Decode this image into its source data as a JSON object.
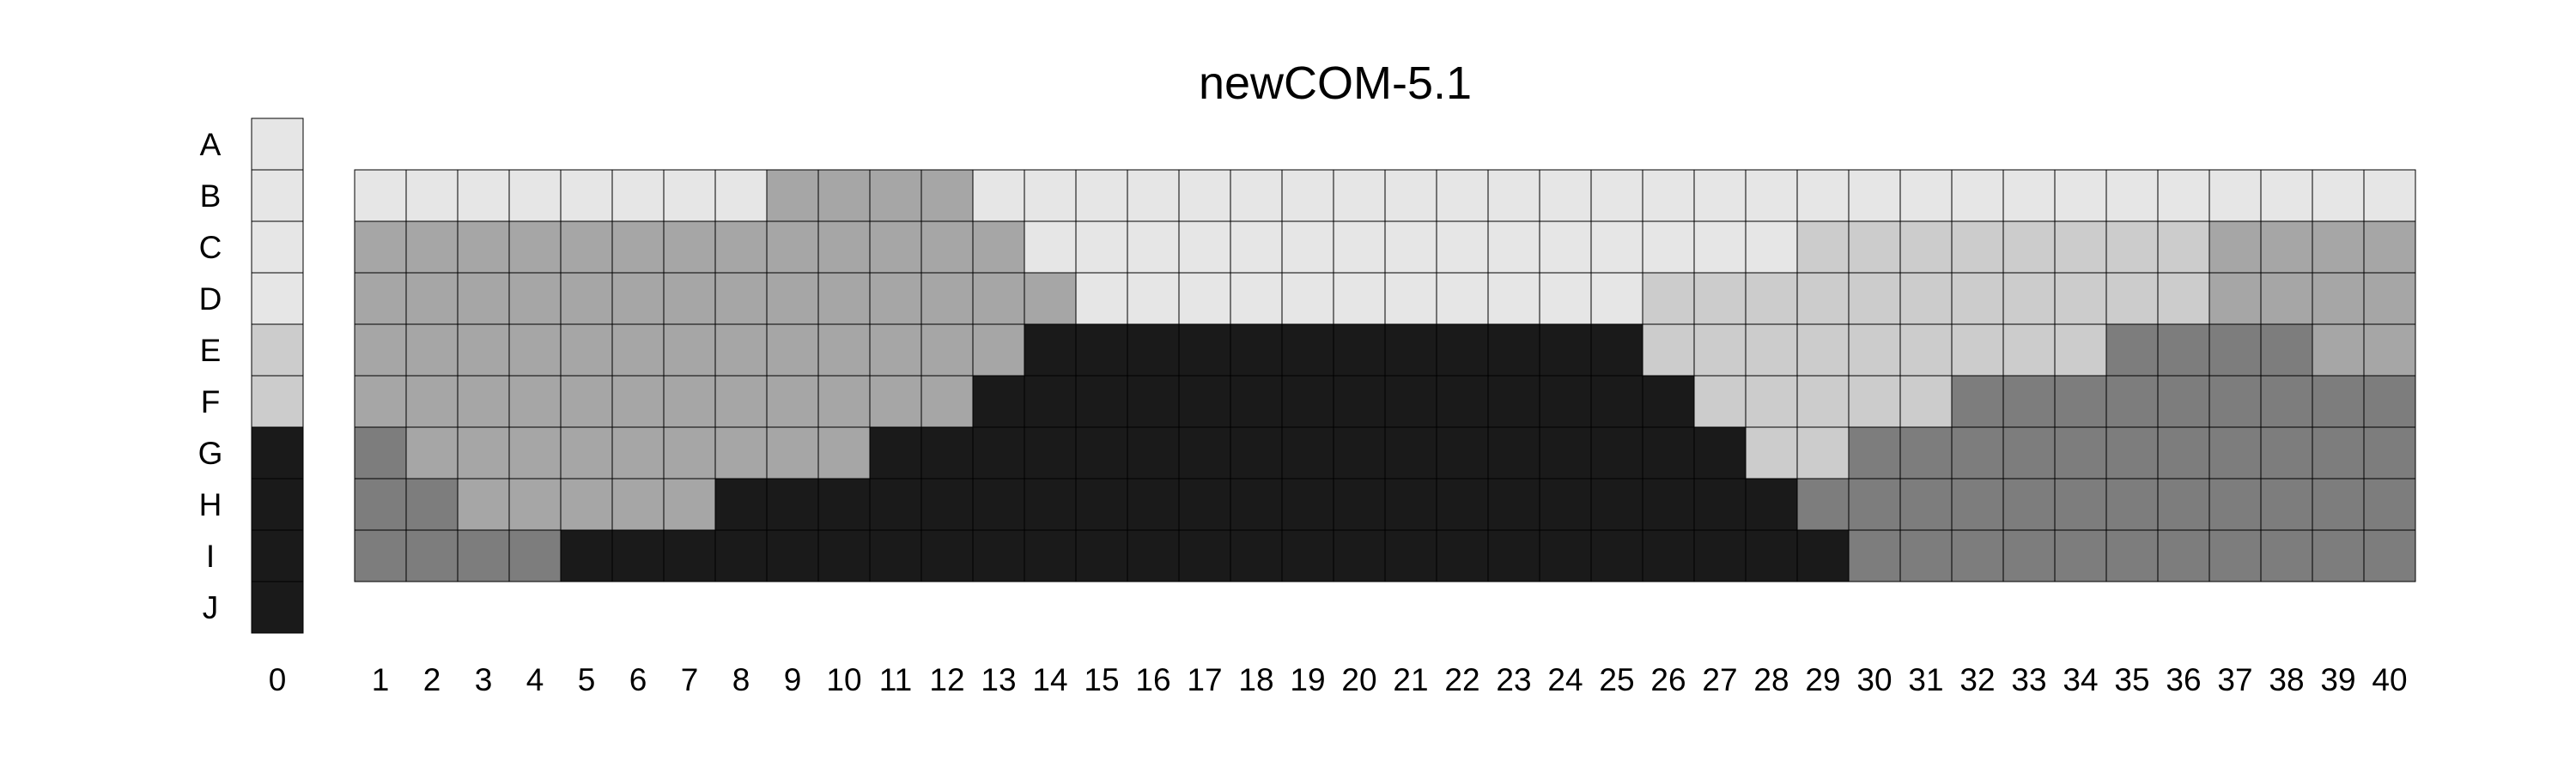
{
  "chart_data": {
    "type": "heatmap",
    "title": "newCOM-5.1",
    "colors": {
      "0": "#e6e6e6",
      "1": "#cccccc",
      "2": "#a6a6a6",
      "3": "#7d7d7d",
      "4": "#1a1a1a"
    },
    "row_labels": [
      "A",
      "B",
      "C",
      "D",
      "E",
      "F",
      "G",
      "H",
      "I",
      "J"
    ],
    "reference_column": {
      "label": "0",
      "values": [
        0,
        0,
        0,
        0,
        1,
        1,
        4,
        4,
        4,
        4
      ]
    },
    "column_labels": [
      "1",
      "2",
      "3",
      "4",
      "5",
      "6",
      "7",
      "8",
      "9",
      "10",
      "11",
      "12",
      "13",
      "14",
      "15",
      "16",
      "17",
      "18",
      "19",
      "20",
      "21",
      "22",
      "23",
      "24",
      "25",
      "26",
      "27",
      "28",
      "29",
      "30",
      "31",
      "32",
      "33",
      "34",
      "35",
      "36",
      "37",
      "38",
      "39",
      "40"
    ],
    "grid_rows": [
      "B",
      "C",
      "D",
      "E",
      "F",
      "G",
      "H",
      "I"
    ],
    "grid": [
      [
        0,
        0,
        0,
        0,
        0,
        0,
        0,
        0,
        2,
        2,
        2,
        2,
        0,
        0,
        0,
        0,
        0,
        0,
        0,
        0,
        0,
        0,
        0,
        0,
        0,
        0,
        0,
        0,
        0,
        0,
        0,
        0,
        0,
        0,
        0,
        0,
        0,
        0,
        0,
        0
      ],
      [
        2,
        2,
        2,
        2,
        2,
        2,
        2,
        2,
        2,
        2,
        2,
        2,
        2,
        0,
        0,
        0,
        0,
        0,
        0,
        0,
        0,
        0,
        0,
        0,
        0,
        0,
        0,
        0,
        1,
        1,
        1,
        1,
        1,
        1,
        1,
        1,
        2,
        2,
        2,
        2
      ],
      [
        2,
        2,
        2,
        2,
        2,
        2,
        2,
        2,
        2,
        2,
        2,
        2,
        2,
        2,
        0,
        0,
        0,
        0,
        0,
        0,
        0,
        0,
        0,
        0,
        0,
        1,
        1,
        1,
        1,
        1,
        1,
        1,
        1,
        1,
        1,
        1,
        2,
        2,
        2,
        2
      ],
      [
        2,
        2,
        2,
        2,
        2,
        2,
        2,
        2,
        2,
        2,
        2,
        2,
        2,
        4,
        4,
        4,
        4,
        4,
        4,
        4,
        4,
        4,
        4,
        4,
        4,
        1,
        1,
        1,
        1,
        1,
        1,
        1,
        1,
        1,
        3,
        3,
        3,
        3,
        2,
        2
      ],
      [
        2,
        2,
        2,
        2,
        2,
        2,
        2,
        2,
        2,
        2,
        2,
        2,
        4,
        4,
        4,
        4,
        4,
        4,
        4,
        4,
        4,
        4,
        4,
        4,
        4,
        4,
        1,
        1,
        1,
        1,
        1,
        3,
        3,
        3,
        3,
        3,
        3,
        3,
        3,
        3
      ],
      [
        3,
        2,
        2,
        2,
        2,
        2,
        2,
        2,
        2,
        2,
        4,
        4,
        4,
        4,
        4,
        4,
        4,
        4,
        4,
        4,
        4,
        4,
        4,
        4,
        4,
        4,
        4,
        1,
        1,
        3,
        3,
        3,
        3,
        3,
        3,
        3,
        3,
        3,
        3,
        3
      ],
      [
        3,
        3,
        2,
        2,
        2,
        2,
        2,
        4,
        4,
        4,
        4,
        4,
        4,
        4,
        4,
        4,
        4,
        4,
        4,
        4,
        4,
        4,
        4,
        4,
        4,
        4,
        4,
        4,
        3,
        3,
        3,
        3,
        3,
        3,
        3,
        3,
        3,
        3,
        3,
        3
      ],
      [
        3,
        3,
        3,
        3,
        4,
        4,
        4,
        4,
        4,
        4,
        4,
        4,
        4,
        4,
        4,
        4,
        4,
        4,
        4,
        4,
        4,
        4,
        4,
        4,
        4,
        4,
        4,
        4,
        4,
        3,
        3,
        3,
        3,
        3,
        3,
        3,
        3,
        3,
        3,
        3
      ]
    ]
  }
}
